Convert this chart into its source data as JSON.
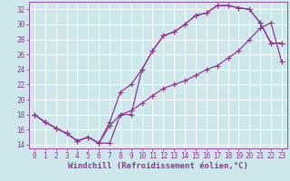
{
  "xlabel": "Windchill (Refroidissement éolien,°C)",
  "bg_color": "#cde8ea",
  "grid_color": "#ffffff",
  "line_color": "#993399",
  "xlim": [
    -0.5,
    23.5
  ],
  "ylim": [
    13.5,
    33.0
  ],
  "xticks": [
    0,
    1,
    2,
    3,
    4,
    5,
    6,
    7,
    8,
    9,
    10,
    11,
    12,
    13,
    14,
    15,
    16,
    17,
    18,
    19,
    20,
    21,
    22,
    23
  ],
  "yticks": [
    14,
    16,
    18,
    20,
    22,
    24,
    26,
    28,
    30,
    32
  ],
  "curve1_x": [
    0,
    1,
    2,
    3,
    4,
    5,
    6,
    7,
    8,
    9,
    10,
    11,
    12,
    13,
    14,
    15,
    16,
    17,
    18,
    19,
    20,
    21,
    22,
    23
  ],
  "curve1_y": [
    18,
    17,
    16.2,
    15.5,
    14.5,
    15.0,
    14.2,
    14.2,
    18.0,
    18.0,
    24.0,
    26.5,
    28.5,
    29.0,
    30.0,
    31.2,
    31.5,
    32.5,
    32.5,
    32.2,
    32.0,
    30.2,
    27.5,
    27.5
  ],
  "curve2_x": [
    0,
    1,
    2,
    3,
    4,
    5,
    6,
    7,
    8,
    9,
    10,
    11,
    12,
    13,
    14,
    15,
    16,
    17,
    18,
    19,
    20,
    21,
    22,
    23
  ],
  "curve2_y": [
    18,
    17,
    16.2,
    15.5,
    14.5,
    15.0,
    14.2,
    17.0,
    21.0,
    22.0,
    24.0,
    26.5,
    28.5,
    29.0,
    30.0,
    31.2,
    31.5,
    32.5,
    32.5,
    32.2,
    32.0,
    30.2,
    27.5,
    27.5
  ],
  "curve3_x": [
    0,
    1,
    2,
    3,
    4,
    5,
    6,
    7,
    8,
    9,
    10,
    11,
    12,
    13,
    14,
    15,
    16,
    17,
    18,
    19,
    20,
    21,
    22,
    23
  ],
  "curve3_y": [
    18,
    17,
    16.2,
    15.5,
    14.5,
    15.0,
    14.2,
    16.5,
    18.0,
    18.5,
    19.5,
    20.5,
    21.5,
    22.0,
    22.5,
    23.2,
    24.0,
    24.5,
    25.5,
    26.5,
    28.0,
    29.5,
    30.2,
    25.0
  ],
  "marker": "+",
  "markersize": 4,
  "linewidth": 0.9,
  "xlabel_fontsize": 6.5,
  "tick_fontsize": 5.5
}
